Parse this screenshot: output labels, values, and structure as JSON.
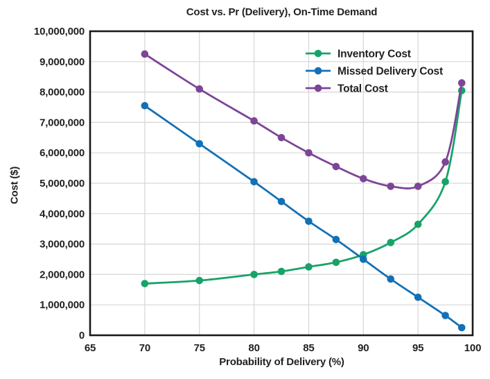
{
  "chart_data": {
    "type": "line",
    "title": "Cost vs. Pr (Delivery), On-Time Demand",
    "xlabel": "Probability of Delivery (%)",
    "ylabel": "Cost ($)",
    "xlim": [
      65,
      100
    ],
    "ylim": [
      0,
      10000000
    ],
    "xticks": [
      65,
      70,
      75,
      80,
      85,
      90,
      95,
      100
    ],
    "yticks": [
      0,
      1000000,
      2000000,
      3000000,
      4000000,
      5000000,
      6000000,
      7000000,
      8000000,
      9000000,
      10000000
    ],
    "grid": true,
    "legend_position": "top-right",
    "x": [
      70,
      75,
      80,
      82.5,
      85,
      87.5,
      90,
      92.5,
      95,
      97.5,
      99
    ],
    "series": [
      {
        "name": "Inventory Cost",
        "color": "#17a368",
        "values": [
          1700000,
          1800000,
          2000000,
          2100000,
          2250000,
          2400000,
          2650000,
          3050000,
          3650000,
          5050000,
          8050000
        ]
      },
      {
        "name": "Missed Delivery Cost",
        "color": "#1370b6",
        "values": [
          7550000,
          6300000,
          5050000,
          4400000,
          3750000,
          3150000,
          2500000,
          1850000,
          1250000,
          650000,
          250000
        ]
      },
      {
        "name": "Total Cost",
        "color": "#7c4597",
        "values": [
          9250000,
          8100000,
          7050000,
          6500000,
          6000000,
          5550000,
          5150000,
          4900000,
          4900000,
          5700000,
          8300000
        ]
      }
    ],
    "colors": {
      "grid": "#d6d6d6",
      "axis_frame": "#1a1a1a",
      "text": "#231f20",
      "background": "#ffffff"
    }
  }
}
